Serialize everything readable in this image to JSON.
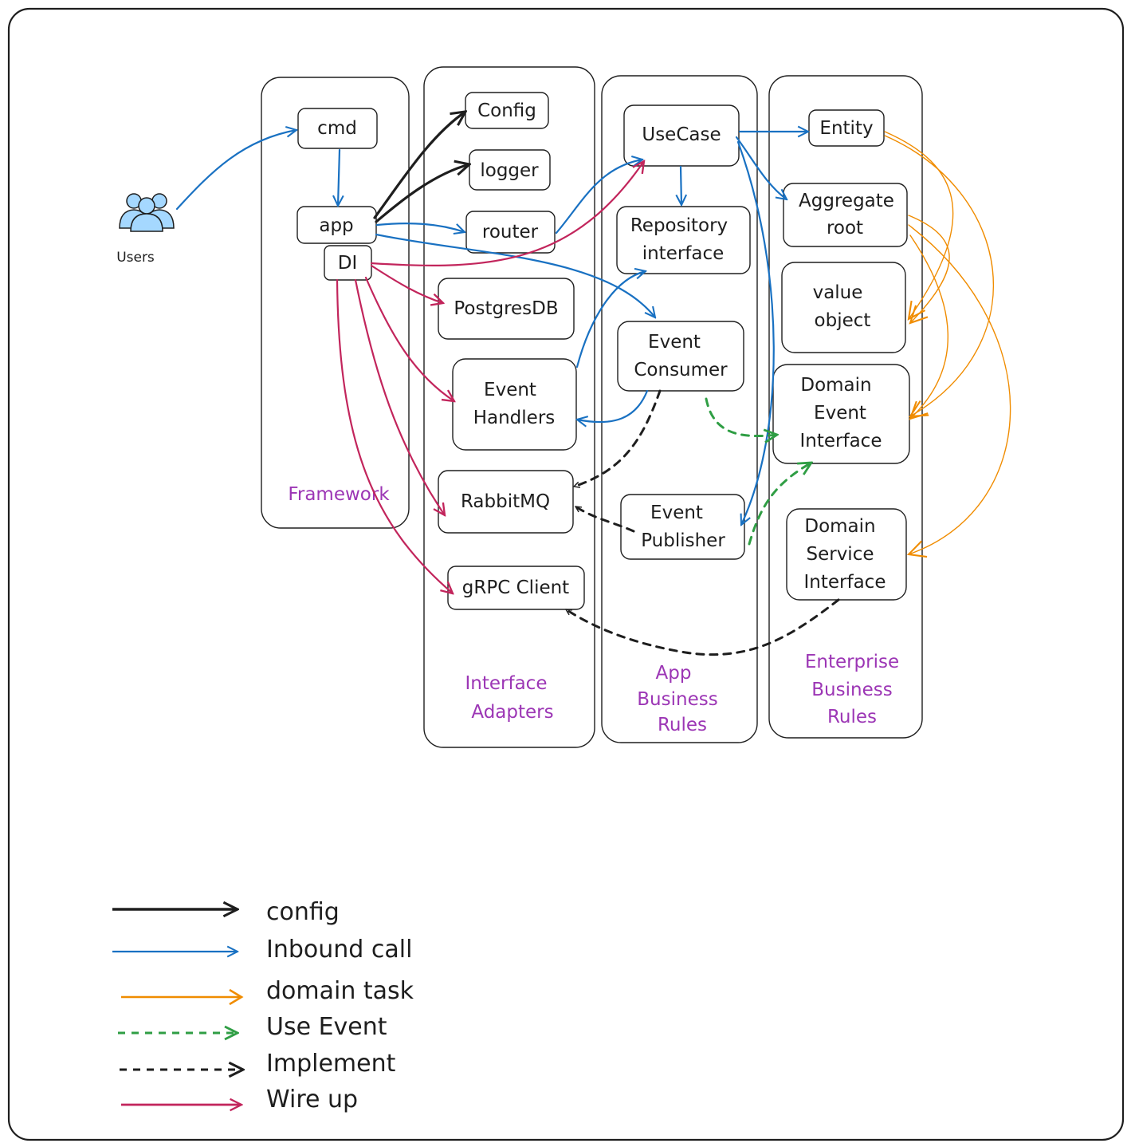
{
  "actors": {
    "users": "Users"
  },
  "layers": {
    "framework": "Framework",
    "interface_adapters": [
      "Interface",
      "Adapters"
    ],
    "app_business_rules": [
      "App",
      "Business",
      "Rules"
    ],
    "enterprise_business_rules": [
      "Enterprise",
      "Business",
      "Rules"
    ]
  },
  "nodes": {
    "cmd": [
      "cmd"
    ],
    "app": [
      "app"
    ],
    "di": [
      "DI"
    ],
    "config": [
      "Config"
    ],
    "logger": [
      "logger"
    ],
    "router": [
      "router"
    ],
    "postgres": [
      "PostgresDB"
    ],
    "event_handlers": [
      "Event",
      "Handlers"
    ],
    "rabbitmq": [
      "RabbitMQ"
    ],
    "grpc_client": [
      "gRPC Client"
    ],
    "usecase": [
      "UseCase"
    ],
    "repository_interface": [
      "Repository",
      "interface"
    ],
    "event_consumer": [
      "Event",
      "Consumer"
    ],
    "event_publisher": [
      "Event",
      "Publisher"
    ],
    "entity": [
      "Entity"
    ],
    "aggregate_root": [
      "Aggregate",
      "root"
    ],
    "value_object": [
      "value",
      "object"
    ],
    "domain_event_interface": [
      "Domain",
      "Event",
      "Interface"
    ],
    "domain_service_interface": [
      "Domain",
      "Service",
      "Interface"
    ]
  },
  "legend": [
    {
      "label": "config",
      "color": "#1e1e1e",
      "style": "solid"
    },
    {
      "label": "Inbound call",
      "color": "#1971c2",
      "style": "solid"
    },
    {
      "label": "domain task",
      "color": "#f08c00",
      "style": "solid"
    },
    {
      "label": "Use Event",
      "color": "#2f9e44",
      "style": "dashed"
    },
    {
      "label": "Implement",
      "color": "#1e1e1e",
      "style": "dashed"
    },
    {
      "label": "Wire up",
      "color": "#c2255c",
      "style": "solid"
    }
  ],
  "colors": {
    "config": "#1e1e1e",
    "inbound": "#1971c2",
    "domain": "#f08c00",
    "event": "#2f9e44",
    "implement": "#1e1e1e",
    "wire": "#c2255c",
    "layer_label": "#9c36b5",
    "users_fill": "#a5d8ff"
  }
}
